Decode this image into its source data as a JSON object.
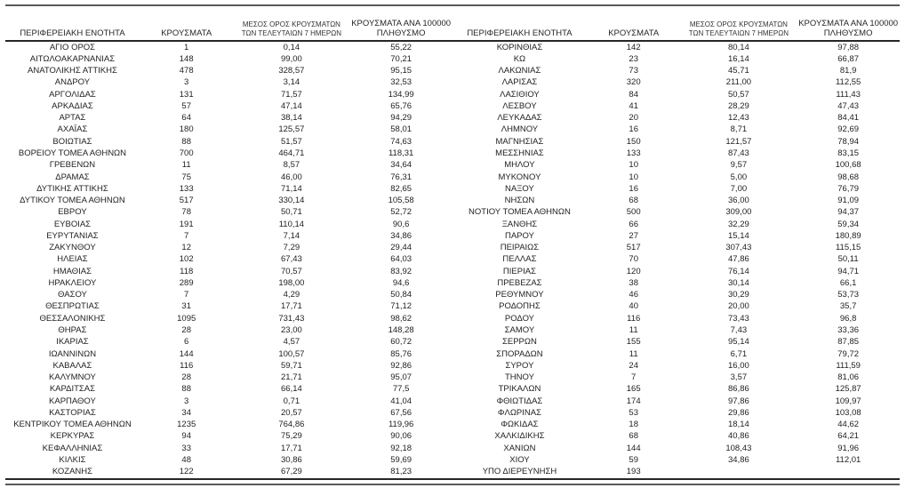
{
  "colors": {
    "rule_gray": "#595959",
    "rule_dark": "#262626",
    "text": "#1f1f1f"
  },
  "table_headers": {
    "region": "ΠΕΡΙΦΕΡΕΙΑΚΗ ΕΝΟΤΗΤΑ",
    "cases": "ΚΡΟΥΣΜΑΤΑ",
    "avg7_line1": "ΜΕΣΟΣ ΟΡΟΣ ΚΡΟΥΣΜΑΤΩΝ",
    "avg7_line2": "ΤΩΝ ΤΕΛΕΥΤΑΙΩΝ 7 ΗΜΕΡΩΝ",
    "per100k_line1": "ΚΡΟΥΣΜΑΤΑ ΑΝΑ 100000",
    "per100k_line2": "ΠΛΗΘΥΣΜΟ"
  },
  "left_table_rows": [
    [
      "ΑΓΙΟ ΟΡΟΣ",
      "1",
      "0,14",
      "55,22"
    ],
    [
      "ΑΙΤΩΛΟΑΚΑΡΝΑΝΙΑΣ",
      "148",
      "99,00",
      "70,21"
    ],
    [
      "ΑΝΑΤΟΛΙΚΗΣ ΑΤΤΙΚΗΣ",
      "478",
      "328,57",
      "95,15"
    ],
    [
      "ΑΝΔΡΟΥ",
      "3",
      "3,14",
      "32,53"
    ],
    [
      "ΑΡΓΟΛΙΔΑΣ",
      "131",
      "71,57",
      "134,99"
    ],
    [
      "ΑΡΚΑΔΙΑΣ",
      "57",
      "47,14",
      "65,76"
    ],
    [
      "ΑΡΤΑΣ",
      "64",
      "38,14",
      "94,29"
    ],
    [
      "ΑΧΑΪΑΣ",
      "180",
      "125,57",
      "58,01"
    ],
    [
      "ΒΟΙΩΤΙΑΣ",
      "88",
      "51,57",
      "74,63"
    ],
    [
      "ΒΟΡΕΙΟΥ ΤΟΜΕΑ ΑΘΗΝΩΝ",
      "700",
      "464,71",
      "118,31"
    ],
    [
      "ΓΡΕΒΕΝΩΝ",
      "11",
      "8,57",
      "34,64"
    ],
    [
      "ΔΡΑΜΑΣ",
      "75",
      "46,00",
      "76,31"
    ],
    [
      "ΔΥΤΙΚΗΣ ΑΤΤΙΚΗΣ",
      "133",
      "71,14",
      "82,65"
    ],
    [
      "ΔΥΤΙΚΟΥ ΤΟΜΕΑ ΑΘΗΝΩΝ",
      "517",
      "330,14",
      "105,58"
    ],
    [
      "ΕΒΡΟΥ",
      "78",
      "50,71",
      "52,72"
    ],
    [
      "ΕΥΒΟΙΑΣ",
      "191",
      "110,14",
      "90,6"
    ],
    [
      "ΕΥΡΥΤΑΝΙΑΣ",
      "7",
      "7,14",
      "34,86"
    ],
    [
      "ΖΑΚΥΝΘΟΥ",
      "12",
      "7,29",
      "29,44"
    ],
    [
      "ΗΛΕΙΑΣ",
      "102",
      "67,43",
      "64,03"
    ],
    [
      "ΗΜΑΘΙΑΣ",
      "118",
      "70,57",
      "83,92"
    ],
    [
      "ΗΡΑΚΛΕΙΟΥ",
      "289",
      "198,00",
      "94,6"
    ],
    [
      "ΘΑΣΟΥ",
      "7",
      "4,29",
      "50,84"
    ],
    [
      "ΘΕΣΠΡΩΤΙΑΣ",
      "31",
      "17,71",
      "71,12"
    ],
    [
      "ΘΕΣΣΑΛΟΝΙΚΗΣ",
      "1095",
      "731,43",
      "98,62"
    ],
    [
      "ΘΗΡΑΣ",
      "28",
      "23,00",
      "148,28"
    ],
    [
      "ΙΚΑΡΙΑΣ",
      "6",
      "4,57",
      "60,72"
    ],
    [
      "ΙΩΑΝΝΙΝΩΝ",
      "144",
      "100,57",
      "85,76"
    ],
    [
      "ΚΑΒΑΛΑΣ",
      "116",
      "59,71",
      "92,86"
    ],
    [
      "ΚΑΛΥΜΝΟΥ",
      "28",
      "21,71",
      "95,07"
    ],
    [
      "ΚΑΡΔΙΤΣΑΣ",
      "88",
      "66,14",
      "77,5"
    ],
    [
      "ΚΑΡΠΑΘΟΥ",
      "3",
      "0,71",
      "41,04"
    ],
    [
      "ΚΑΣΤΟΡΙΑΣ",
      "34",
      "20,57",
      "67,56"
    ],
    [
      "ΚΕΝΤΡΙΚΟΥ ΤΟΜΕΑ ΑΘΗΝΩΝ",
      "1235",
      "764,86",
      "119,96"
    ],
    [
      "ΚΕΡΚΥΡΑΣ",
      "94",
      "75,29",
      "90,06"
    ],
    [
      "ΚΕΦΑΛΛΗΝΙΑΣ",
      "33",
      "17,71",
      "92,18"
    ],
    [
      "ΚΙΛΚΙΣ",
      "48",
      "30,86",
      "59,69"
    ],
    [
      "ΚΟΖΑΝΗΣ",
      "122",
      "67,29",
      "81,23"
    ]
  ],
  "right_table_rows": [
    [
      "ΚΟΡΙΝΘΙΑΣ",
      "142",
      "80,14",
      "97,88"
    ],
    [
      "ΚΩ",
      "23",
      "16,14",
      "66,87"
    ],
    [
      "ΛΑΚΩΝΙΑΣ",
      "73",
      "45,71",
      "81,9"
    ],
    [
      "ΛΑΡΙΣΑΣ",
      "320",
      "211,00",
      "112,55"
    ],
    [
      "ΛΑΣΙΘΙΟΥ",
      "84",
      "50,57",
      "111,43"
    ],
    [
      "ΛΕΣΒΟΥ",
      "41",
      "28,29",
      "47,43"
    ],
    [
      "ΛΕΥΚΑΔΑΣ",
      "20",
      "12,43",
      "84,41"
    ],
    [
      "ΛΗΜΝΟΥ",
      "16",
      "8,71",
      "92,69"
    ],
    [
      "ΜΑΓΝΗΣΙΑΣ",
      "150",
      "121,57",
      "78,94"
    ],
    [
      "ΜΕΣΣΗΝΙΑΣ",
      "133",
      "87,43",
      "83,15"
    ],
    [
      "ΜΗΛΟΥ",
      "10",
      "9,57",
      "100,68"
    ],
    [
      "ΜΥΚΟΝΟΥ",
      "10",
      "5,00",
      "98,68"
    ],
    [
      "ΝΑΞΟΥ",
      "16",
      "7,00",
      "76,79"
    ],
    [
      "ΝΗΣΩΝ",
      "68",
      "36,00",
      "91,09"
    ],
    [
      "ΝΟΤΙΟΥ ΤΟΜΕΑ ΑΘΗΝΩΝ",
      "500",
      "309,00",
      "94,37"
    ],
    [
      "ΞΑΝΘΗΣ",
      "66",
      "32,29",
      "59,34"
    ],
    [
      "ΠΑΡΟΥ",
      "27",
      "15,14",
      "180,89"
    ],
    [
      "ΠΕΙΡΑΙΩΣ",
      "517",
      "307,43",
      "115,15"
    ],
    [
      "ΠΕΛΛΑΣ",
      "70",
      "47,86",
      "50,11"
    ],
    [
      "ΠΙΕΡΙΑΣ",
      "120",
      "76,14",
      "94,71"
    ],
    [
      "ΠΡΕΒΕΖΑΣ",
      "38",
      "30,14",
      "66,1"
    ],
    [
      "ΡΕΘΥΜΝΟΥ",
      "46",
      "30,29",
      "53,73"
    ],
    [
      "ΡΟΔΟΠΗΣ",
      "40",
      "20,00",
      "35,7"
    ],
    [
      "ΡΟΔΟΥ",
      "116",
      "73,43",
      "96,8"
    ],
    [
      "ΣΑΜΟΥ",
      "11",
      "7,43",
      "33,36"
    ],
    [
      "ΣΕΡΡΩΝ",
      "155",
      "95,14",
      "87,85"
    ],
    [
      "ΣΠΟΡΑΔΩΝ",
      "11",
      "6,71",
      "79,72"
    ],
    [
      "ΣΥΡΟΥ",
      "24",
      "16,00",
      "111,59"
    ],
    [
      "ΤΗΝΟΥ",
      "7",
      "3,57",
      "81,06"
    ],
    [
      "ΤΡΙΚΑΛΩΝ",
      "165",
      "86,86",
      "125,87"
    ],
    [
      "ΦΘΙΩΤΙΔΑΣ",
      "174",
      "97,86",
      "109,97"
    ],
    [
      "ΦΛΩΡΙΝΑΣ",
      "53",
      "29,86",
      "103,08"
    ],
    [
      "ΦΩΚΙΔΑΣ",
      "18",
      "18,14",
      "44,62"
    ],
    [
      "ΧΑΛΚΙΔΙΚΗΣ",
      "68",
      "40,86",
      "64,21"
    ],
    [
      "ΧΑΝΙΩΝ",
      "144",
      "108,43",
      "91,96"
    ],
    [
      "ΧΙΟΥ",
      "59",
      "34,86",
      "112,01"
    ],
    [
      "ΥΠΟ ΔΙΕΡΕΥΝΗΣΗ",
      "193",
      "",
      ""
    ]
  ]
}
